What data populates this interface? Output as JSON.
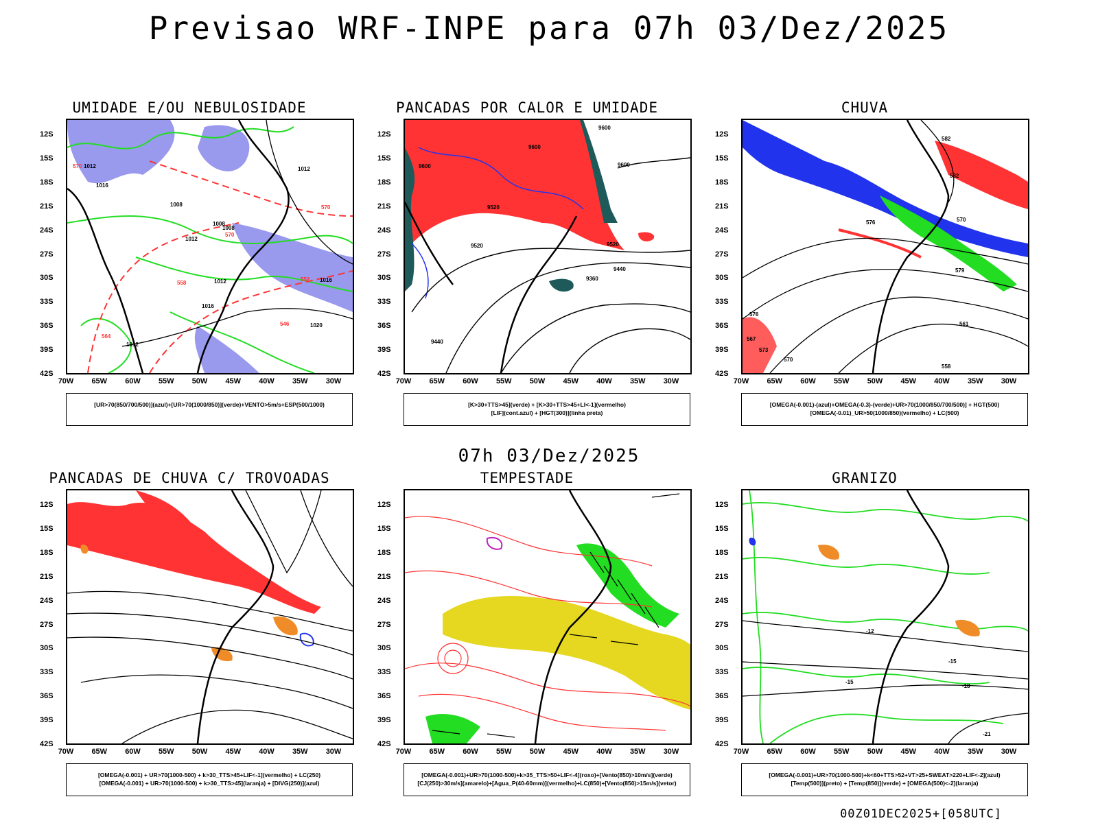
{
  "header": {
    "title": "Previsao WRF-INPE  para 07h 03/Dez/2025",
    "subtitle": "07h 03/Dez/2025",
    "footer": "00Z01DEC2025+[058UTC]"
  },
  "axes": {
    "y_ticks": [
      "12S",
      "15S",
      "18S",
      "21S",
      "24S",
      "27S",
      "30S",
      "33S",
      "36S",
      "39S",
      "42S"
    ],
    "x_ticks": [
      "70W",
      "65W",
      "60W",
      "55W",
      "50W",
      "45W",
      "40W",
      "35W",
      "30W"
    ]
  },
  "colors": {
    "blue": "#2233ee",
    "lavender": "#9999ee",
    "green": "#22dd22",
    "red": "#ff3333",
    "teal": "#1e5a5a",
    "yellow": "#e6d820",
    "orange": "#f08c28",
    "purple": "#c020c0",
    "black": "#000000"
  },
  "panels": [
    {
      "title": "UMIDADE E/OU NEBULOSIDADE",
      "legend": [
        "[UR>70(850/700/500)](azul)+[UR>70(1000/850)](verde)+VENTO>5m/s+ESP(500/1000)"
      ],
      "labels": [
        "1012",
        "1016",
        "1008",
        "1012",
        "1008",
        "1008",
        "1012",
        "1016",
        "1016",
        "1012",
        "1020",
        "1012",
        "570",
        "570",
        "558",
        "552",
        "546",
        "564",
        "570"
      ]
    },
    {
      "title": "PANCADAS POR CALOR E UMIDADE",
      "legend": [
        "[K>30+TTS>45](verde) + [K>30+TTS>45+LI<-1](vermelho)",
        "[LIF](cont.azul) + [HGT(300)](linha preta)"
      ],
      "labels": [
        "9600",
        "9600",
        "9600",
        "9600",
        "9520",
        "9520",
        "9520",
        "9440",
        "9360",
        "9440"
      ]
    },
    {
      "title": "CHUVA",
      "legend": [
        "[OMEGA(-0.001)-(azul)+OMEGA(-0.3)-(verde)+UR>70(1000/850/700/500)] + HGT(500)",
        "[OMEGA(-0.01)_UR>50(1000/850)(vermelho) + LC(500)"
      ],
      "labels": [
        "582",
        "582",
        "576",
        "570",
        "579",
        "576",
        "573",
        "570",
        "558",
        "561",
        "567"
      ]
    },
    {
      "title": "PANCADAS DE CHUVA C/ TROVOADAS",
      "legend": [
        "[OMEGA(-0.001) + UR>70(1000-500) + k>30_TTS>45+LIF<-1](vermelho) + LC(250)",
        "[OMEGA(-0.001) + UR>70(1000-500) + k>30_TTS>45](laranja) + [DIVG(250)](azul)"
      ],
      "labels": []
    },
    {
      "title": "TEMPESTADE",
      "legend": [
        "[OMEGA(-0.001)+UR>70(1000-500)+k>35_TTS>50+LIF<-4](roxo)+[Vento(850)>10m/s](verde)",
        "[CJ(250)>30m/s](amarelo)+[Agua_P(40-60mm)](vermelho)+LC(850)+[Vento(850)>15m/s](vetor)"
      ],
      "labels": []
    },
    {
      "title": "GRANIZO",
      "legend": [
        "[OMEGA(-0.001)+UR>70(1000-500)+k<60+TTS>52+VT>25+SWEAT>220+LIF<-2](azul)",
        "[Temp(500)](preto) + [Temp(850)](verde) + [OMEGA(500)<-2](laranja)"
      ],
      "labels": [
        "-12",
        "-15",
        "-15",
        "-18",
        "-21"
      ]
    }
  ]
}
